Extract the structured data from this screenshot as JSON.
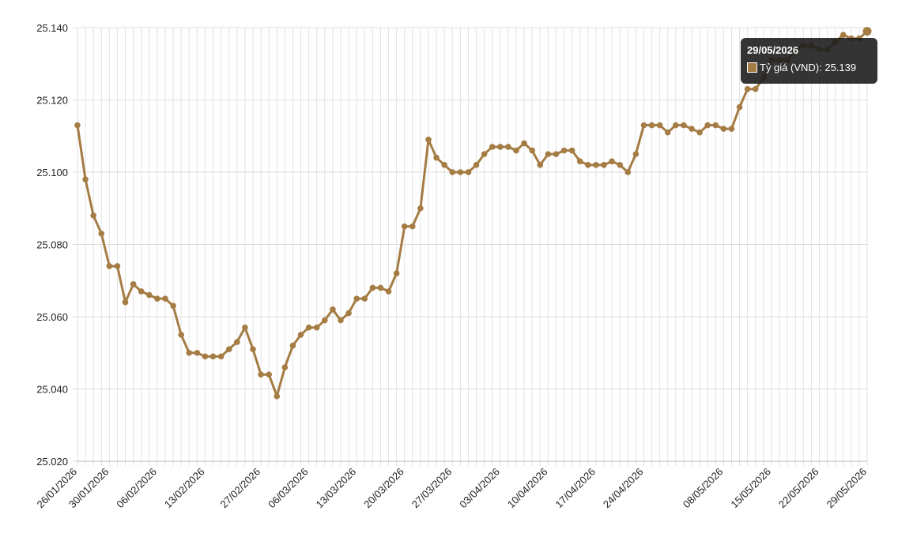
{
  "chart_data": {
    "type": "line",
    "categories": [
      "26/01/2026",
      null,
      null,
      null,
      "30/01/2026",
      null,
      null,
      null,
      null,
      null,
      "06/02/2026",
      null,
      null,
      null,
      null,
      null,
      "13/02/2026",
      null,
      null,
      null,
      null,
      null,
      null,
      "27/02/2026",
      null,
      null,
      null,
      null,
      null,
      "06/03/2026",
      null,
      null,
      null,
      null,
      null,
      "13/03/2026",
      null,
      null,
      null,
      null,
      null,
      "20/03/2026",
      null,
      null,
      null,
      null,
      null,
      "27/03/2026",
      null,
      null,
      null,
      null,
      null,
      "03/04/2026",
      null,
      null,
      null,
      null,
      null,
      "10/04/2026",
      null,
      null,
      null,
      null,
      null,
      "17/04/2026",
      null,
      null,
      null,
      null,
      null,
      "24/04/2026",
      null,
      null,
      null,
      null,
      null,
      null,
      null,
      null,
      null,
      "08/05/2026",
      null,
      null,
      null,
      null,
      null,
      "15/05/2026",
      null,
      null,
      null,
      null,
      null,
      "22/05/2026",
      null,
      null,
      null,
      null,
      null,
      "29/05/2026"
    ],
    "series": [
      {
        "name": "Tỷ giá (VND)",
        "color": "#a57c44",
        "values": [
          25113,
          25098,
          25088,
          25083,
          25074,
          25074,
          25064,
          25069,
          25067,
          25066,
          25065,
          25065,
          25063,
          25055,
          25050,
          25050,
          25049,
          25049,
          25049,
          25051,
          25053,
          25057,
          25051,
          25044,
          25044,
          25038,
          25046,
          25052,
          25055,
          25057,
          25057,
          25059,
          25062,
          25059,
          25061,
          25065,
          25065,
          25068,
          25068,
          25067,
          25072,
          25085,
          25085,
          25090,
          25109,
          25104,
          25102,
          25100,
          25100,
          25100,
          25102,
          25105,
          25107,
          25107,
          25107,
          25106,
          25108,
          25106,
          25102,
          25105,
          25105,
          25106,
          25106,
          25103,
          25102,
          25102,
          25102,
          25103,
          25102,
          25100,
          25105,
          25113,
          25113,
          25113,
          25111,
          25113,
          25113,
          25112,
          25111,
          25113,
          25113,
          25112,
          25112,
          25118,
          25123,
          25123,
          25126,
          25131,
          25131,
          25131,
          25134,
          25135,
          25135,
          25134,
          25134,
          25136,
          25138,
          25137,
          25137,
          25139
        ]
      }
    ],
    "ylim": [
      25020,
      25140
    ],
    "yticks": [
      {
        "value": 25020,
        "label": "25.020"
      },
      {
        "value": 25040,
        "label": "25.040"
      },
      {
        "value": 25060,
        "label": "25.060"
      },
      {
        "value": 25080,
        "label": "25.080"
      },
      {
        "value": 25100,
        "label": "25.100"
      },
      {
        "value": 25120,
        "label": "25.120"
      },
      {
        "value": 25140,
        "label": "25.140"
      }
    ],
    "grid": true,
    "tooltip": {
      "title": "29/05/2026",
      "text": "Tỷ giá (VND): 25.139"
    }
  }
}
